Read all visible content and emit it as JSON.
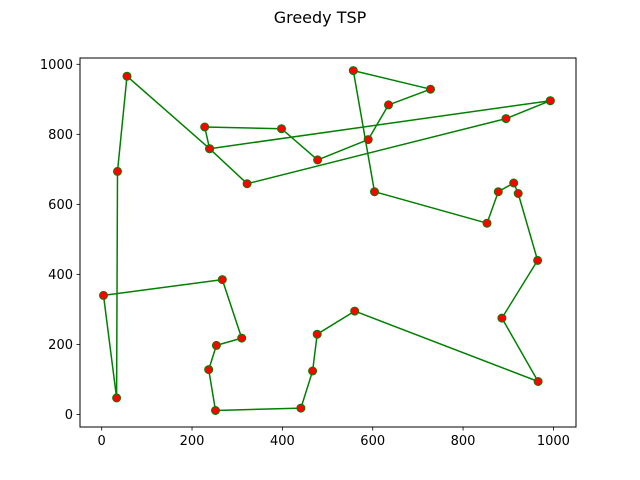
{
  "chart_data": {
    "type": "scatter",
    "title": "Greedy TSP",
    "xlabel": "",
    "ylabel": "",
    "xlim": [
      -48,
      1050
    ],
    "ylim": [
      -36,
      1018
    ],
    "xticks": [
      0,
      200,
      400,
      600,
      800,
      1000
    ],
    "yticks": [
      0,
      200,
      400,
      600,
      800,
      1000
    ],
    "grid": false,
    "colors": {
      "path": "#008000",
      "point_face": "#ff0000",
      "point_edge": "#008000",
      "axes": "#000000"
    },
    "series": [
      {
        "values": [
          [
            993,
            896
          ],
          [
            895,
            845
          ],
          [
            322,
            659
          ],
          [
            239,
            759
          ],
          [
            228,
            821
          ],
          [
            398,
            816
          ],
          [
            478,
            727
          ],
          [
            590,
            785
          ],
          [
            635,
            884
          ],
          [
            728,
            929
          ],
          [
            557,
            982
          ],
          [
            604,
            636
          ],
          [
            853,
            546
          ],
          [
            878,
            636
          ],
          [
            912,
            661
          ],
          [
            922,
            631
          ],
          [
            965,
            440
          ],
          [
            886,
            275
          ],
          [
            966,
            94
          ],
          [
            560,
            295
          ],
          [
            477,
            229
          ],
          [
            467,
            124
          ],
          [
            441,
            18
          ],
          [
            252,
            11
          ],
          [
            237,
            128
          ],
          [
            254,
            197
          ],
          [
            310,
            218
          ],
          [
            267,
            385
          ],
          [
            4,
            340
          ],
          [
            33,
            47
          ],
          [
            35,
            694
          ],
          [
            56,
            966
          ],
          [
            239,
            759
          ],
          [
            993,
            896
          ]
        ]
      }
    ]
  }
}
